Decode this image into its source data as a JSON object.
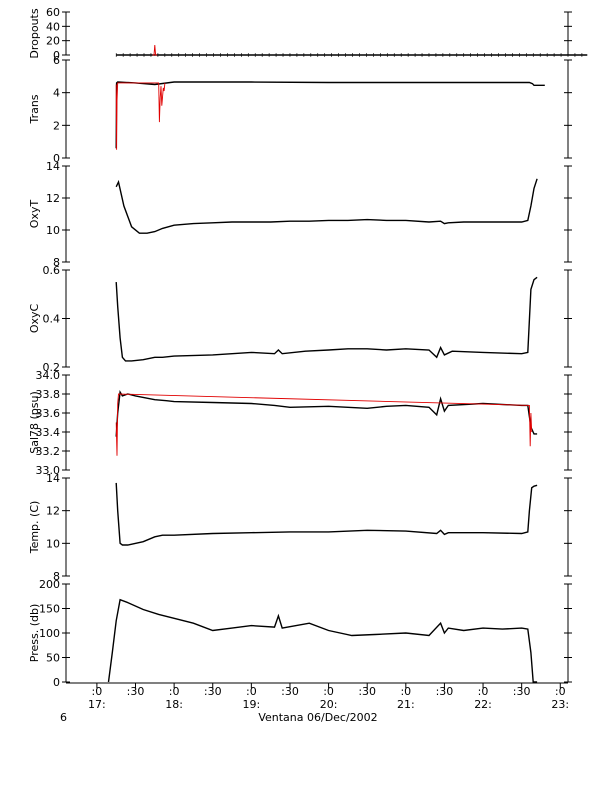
{
  "chart_data": [
    {
      "type": "line",
      "ylabel": "Dropouts",
      "ylim": [
        0,
        60
      ],
      "yticks": [
        0,
        20,
        40,
        60
      ],
      "series": [
        {
          "color": "#000000",
          "x": [
            17.25,
            23.35
          ],
          "y": [
            0,
            0
          ]
        },
        {
          "color": "#e00000",
          "x": [
            17.72,
            17.74,
            17.75,
            17.76,
            17.78
          ],
          "y": [
            0,
            0,
            14,
            0,
            0
          ]
        }
      ]
    },
    {
      "type": "line",
      "ylabel": "Trans",
      "ylim": [
        0,
        6
      ],
      "yticks": [
        0,
        2,
        4,
        6
      ],
      "series": [
        {
          "color": "#000000",
          "x": [
            17.25,
            17.255,
            17.27,
            17.5,
            17.75,
            18.0,
            19.0,
            20.0,
            21.0,
            22.0,
            22.6,
            22.64,
            22.66,
            22.8
          ],
          "y": [
            0.6,
            4.6,
            4.65,
            4.6,
            4.5,
            4.65,
            4.65,
            4.62,
            4.62,
            4.62,
            4.62,
            4.55,
            4.45,
            4.45
          ]
        },
        {
          "color": "#e00000",
          "x": [
            17.25,
            17.255,
            17.26,
            17.27,
            17.8,
            17.81,
            17.82,
            17.83,
            17.84,
            17.86,
            17.87,
            17.88
          ],
          "y": [
            4.5,
            0.5,
            3.5,
            4.6,
            4.6,
            2.2,
            3.7,
            4.4,
            3.2,
            4.3,
            4.1,
            4.6
          ]
        }
      ]
    },
    {
      "type": "line",
      "ylabel": "OxyT",
      "ylim": [
        8,
        14
      ],
      "yticks": [
        8,
        10,
        12,
        14
      ],
      "series": [
        {
          "color": "#000000",
          "x": [
            17.25,
            17.28,
            17.35,
            17.45,
            17.55,
            17.65,
            17.75,
            17.85,
            18.0,
            18.25,
            18.5,
            18.75,
            19.0,
            19.25,
            19.5,
            19.75,
            20.0,
            20.25,
            20.5,
            20.75,
            21.0,
            21.3,
            21.45,
            21.5,
            21.55,
            21.75,
            22.0,
            22.25,
            22.5,
            22.58,
            22.62,
            22.66,
            22.7
          ],
          "y": [
            12.7,
            13.0,
            11.5,
            10.2,
            9.8,
            9.8,
            9.9,
            10.1,
            10.3,
            10.4,
            10.45,
            10.5,
            10.5,
            10.5,
            10.55,
            10.55,
            10.6,
            10.6,
            10.65,
            10.6,
            10.6,
            10.5,
            10.55,
            10.4,
            10.45,
            10.5,
            10.5,
            10.5,
            10.5,
            10.6,
            11.5,
            12.6,
            13.2
          ]
        }
      ]
    },
    {
      "type": "line",
      "ylabel": "OxyC",
      "ylim": [
        0.2,
        0.6
      ],
      "yticks": [
        0.2,
        0.4,
        0.6
      ],
      "series": [
        {
          "color": "#000000",
          "x": [
            17.25,
            17.27,
            17.3,
            17.33,
            17.37,
            17.45,
            17.6,
            17.75,
            17.85,
            18.0,
            18.5,
            19.0,
            19.3,
            19.35,
            19.4,
            19.7,
            20.0,
            20.25,
            20.5,
            20.75,
            21.0,
            21.3,
            21.4,
            21.45,
            21.5,
            21.6,
            22.0,
            22.5,
            22.58,
            22.62,
            22.66,
            22.7
          ],
          "y": [
            0.55,
            0.45,
            0.32,
            0.24,
            0.225,
            0.225,
            0.23,
            0.24,
            0.24,
            0.245,
            0.25,
            0.26,
            0.255,
            0.27,
            0.255,
            0.265,
            0.27,
            0.275,
            0.275,
            0.27,
            0.275,
            0.27,
            0.24,
            0.28,
            0.25,
            0.265,
            0.26,
            0.255,
            0.26,
            0.52,
            0.56,
            0.57
          ]
        }
      ]
    },
    {
      "type": "line",
      "ylabel": "Sal78 (psu)",
      "ylim": [
        33.0,
        34.0
      ],
      "yticks": [
        33.0,
        33.2,
        33.4,
        33.6,
        33.8,
        34.0
      ],
      "series": [
        {
          "color": "#000000",
          "x": [
            17.25,
            17.27,
            17.3,
            17.33,
            17.4,
            17.5,
            17.75,
            17.9,
            18.0,
            18.5,
            19.0,
            19.3,
            19.5,
            20.0,
            20.5,
            20.75,
            21.0,
            21.3,
            21.4,
            21.45,
            21.5,
            21.55,
            22.0,
            22.5,
            22.58,
            22.62,
            22.66,
            22.7
          ],
          "y": [
            33.35,
            33.6,
            33.82,
            33.78,
            33.8,
            33.78,
            33.74,
            33.73,
            33.72,
            33.71,
            33.7,
            33.68,
            33.66,
            33.67,
            33.65,
            33.67,
            33.68,
            33.66,
            33.58,
            33.75,
            33.62,
            33.68,
            33.7,
            33.68,
            33.68,
            33.45,
            33.38,
            33.38
          ]
        },
        {
          "color": "#e00000",
          "x": [
            17.25,
            17.26,
            17.27,
            17.28,
            22.6,
            22.61,
            22.62,
            22.63
          ],
          "y": [
            33.5,
            33.15,
            33.7,
            33.8,
            33.68,
            33.25,
            33.6,
            33.4
          ]
        }
      ]
    },
    {
      "type": "line",
      "ylabel": "Temp. (C)",
      "ylim": [
        8,
        14
      ],
      "yticks": [
        8,
        10,
        12,
        14
      ],
      "series": [
        {
          "color": "#000000",
          "x": [
            17.25,
            17.27,
            17.3,
            17.33,
            17.4,
            17.6,
            17.75,
            17.85,
            18.0,
            18.5,
            19.0,
            19.5,
            20.0,
            20.5,
            21.0,
            21.4,
            21.45,
            21.5,
            21.55,
            22.0,
            22.5,
            22.58,
            22.6,
            22.63,
            22.66,
            22.7
          ],
          "y": [
            13.7,
            12.0,
            10.0,
            9.9,
            9.9,
            10.1,
            10.4,
            10.5,
            10.5,
            10.6,
            10.65,
            10.7,
            10.7,
            10.8,
            10.75,
            10.6,
            10.8,
            10.55,
            10.65,
            10.65,
            10.6,
            10.7,
            12.0,
            13.4,
            13.5,
            13.55
          ]
        }
      ]
    },
    {
      "type": "line",
      "ylabel": "Press. (db)",
      "ylim": [
        0,
        200
      ],
      "yticks": [
        0,
        50,
        100,
        150,
        200
      ],
      "series": [
        {
          "color": "#000000",
          "x": [
            17.15,
            17.2,
            17.25,
            17.3,
            17.4,
            17.6,
            17.8,
            18.0,
            18.25,
            18.5,
            18.75,
            19.0,
            19.3,
            19.35,
            19.4,
            19.75,
            20.0,
            20.3,
            20.6,
            21.0,
            21.3,
            21.45,
            21.5,
            21.55,
            21.75,
            22.0,
            22.25,
            22.5,
            22.58,
            22.62,
            22.65,
            22.7
          ],
          "y": [
            0,
            60,
            125,
            168,
            162,
            148,
            138,
            130,
            120,
            105,
            110,
            115,
            112,
            135,
            110,
            120,
            105,
            95,
            97,
            100,
            95,
            120,
            100,
            110,
            105,
            110,
            108,
            110,
            108,
            60,
            0,
            0
          ]
        }
      ]
    }
  ],
  "xaxis": {
    "ticks": [
      {
        "x": 17.0,
        "top": ":0",
        "bottom": "17:"
      },
      {
        "x": 17.5,
        "top": ":30",
        "bottom": ""
      },
      {
        "x": 18.0,
        "top": ":0",
        "bottom": "18:"
      },
      {
        "x": 18.5,
        "top": ":30",
        "bottom": ""
      },
      {
        "x": 19.0,
        "top": ":0",
        "bottom": "19:"
      },
      {
        "x": 19.5,
        "top": ":30",
        "bottom": ""
      },
      {
        "x": 20.0,
        "top": ":0",
        "bottom": "20:"
      },
      {
        "x": 20.5,
        "top": ":30",
        "bottom": ""
      },
      {
        "x": 21.0,
        "top": ":0",
        "bottom": "21:"
      },
      {
        "x": 21.5,
        "top": ":30",
        "bottom": ""
      },
      {
        "x": 22.0,
        "top": ":0",
        "bottom": "22:"
      },
      {
        "x": 22.5,
        "top": ":30",
        "bottom": ""
      },
      {
        "x": 23.0,
        "top": ":0",
        "bottom": "23:"
      }
    ],
    "xlim": [
      16.6,
      23.1
    ],
    "corner_label": "6",
    "caption": "Ventana 06/Dec/2002"
  }
}
